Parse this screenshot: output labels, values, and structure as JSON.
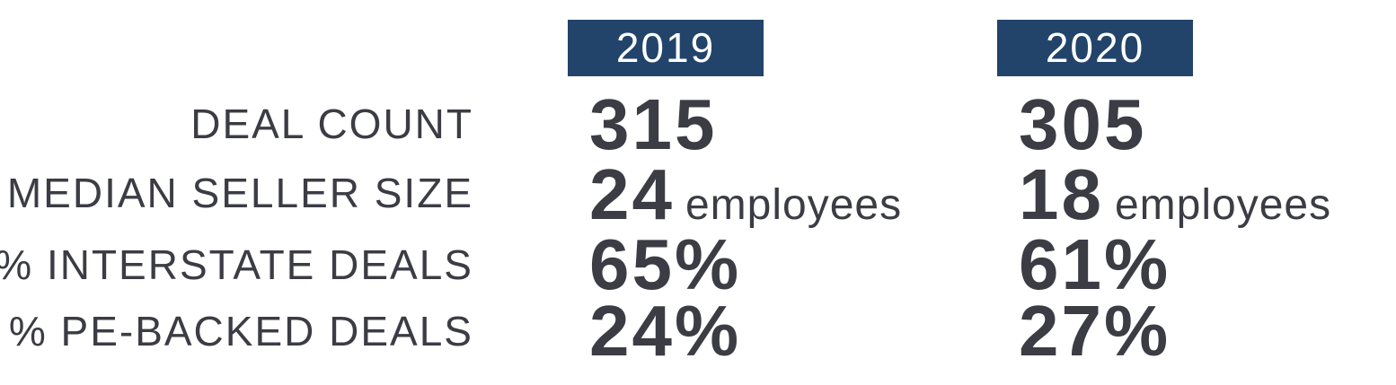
{
  "table": {
    "columns": [
      "2019",
      "2020"
    ],
    "rows": [
      {
        "label": "DEAL COUNT",
        "cells": [
          {
            "value": "315"
          },
          {
            "value": "305"
          }
        ]
      },
      {
        "label": "MEDIAN SELLER SIZE",
        "cells": [
          {
            "value": "24",
            "unit": "employees"
          },
          {
            "value": "18",
            "unit": "employees"
          }
        ]
      },
      {
        "label": "% INTERSTATE DEALS",
        "cells": [
          {
            "value": "65%"
          },
          {
            "value": "61%"
          }
        ]
      },
      {
        "label": "% PE-BACKED DEALS",
        "cells": [
          {
            "value": "24%"
          },
          {
            "value": "27%"
          }
        ]
      }
    ]
  }
}
